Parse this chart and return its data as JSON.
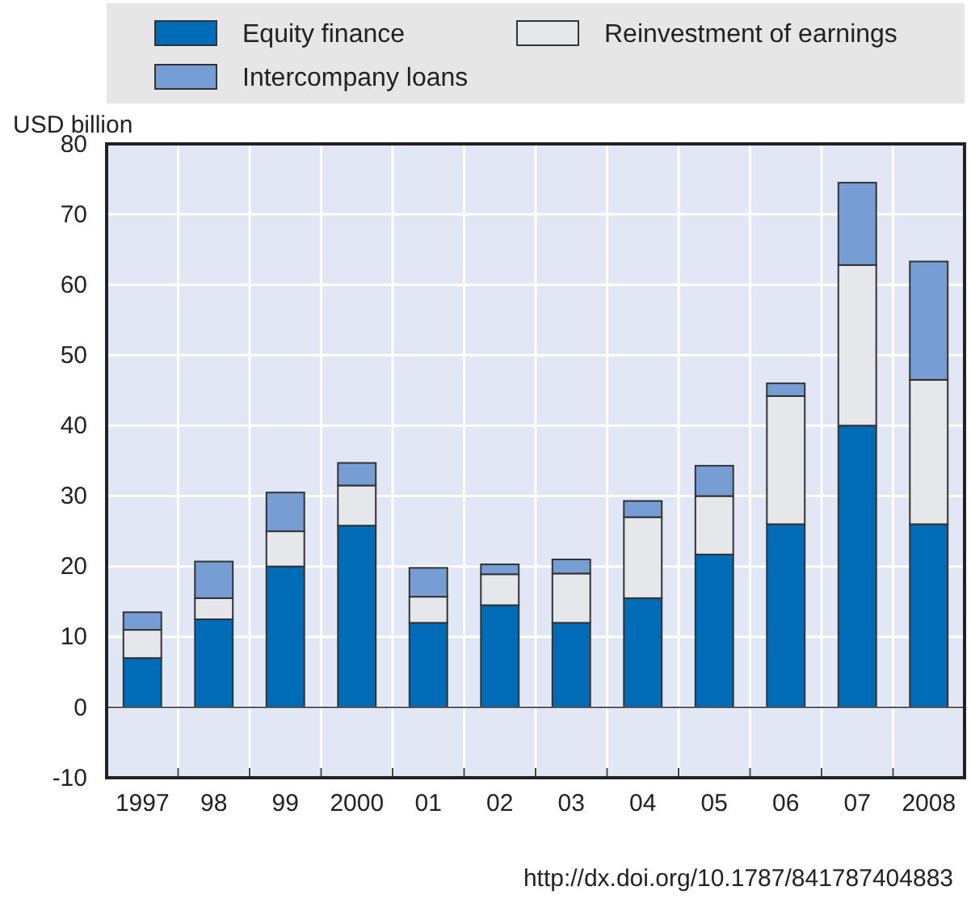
{
  "chart_data": {
    "type": "bar",
    "stacked": true,
    "ylabel": "USD billion",
    "categories": [
      "1997",
      "98",
      "99",
      "2000",
      "01",
      "02",
      "03",
      "04",
      "05",
      "06",
      "07",
      "2008"
    ],
    "series": [
      {
        "name": "Equity finance",
        "color": "#006bb6",
        "values": [
          7,
          12.5,
          20,
          25.8,
          12,
          14.5,
          12,
          15.5,
          21.7,
          26,
          40,
          26
        ]
      },
      {
        "name": "Reinvestment of earnings",
        "color": "#e5e7ea",
        "values": [
          4,
          3,
          5,
          5.7,
          3.7,
          4.4,
          7,
          11.5,
          8.3,
          18.2,
          22.8,
          20.5
        ]
      },
      {
        "name": "Intercompany loans",
        "color": "#769ed4",
        "values": [
          2.5,
          5.2,
          5.5,
          3.2,
          4.1,
          1.4,
          2,
          2.3,
          4.3,
          1.8,
          11.7,
          16.8
        ]
      }
    ],
    "ylim": [
      -10,
      80
    ],
    "yticks": [
      -10,
      0,
      10,
      20,
      30,
      40,
      50,
      60,
      70,
      80
    ],
    "grid": true,
    "legend": "top",
    "annotations": [
      "http://dx.doi.org/10.1787/841787404883"
    ]
  }
}
